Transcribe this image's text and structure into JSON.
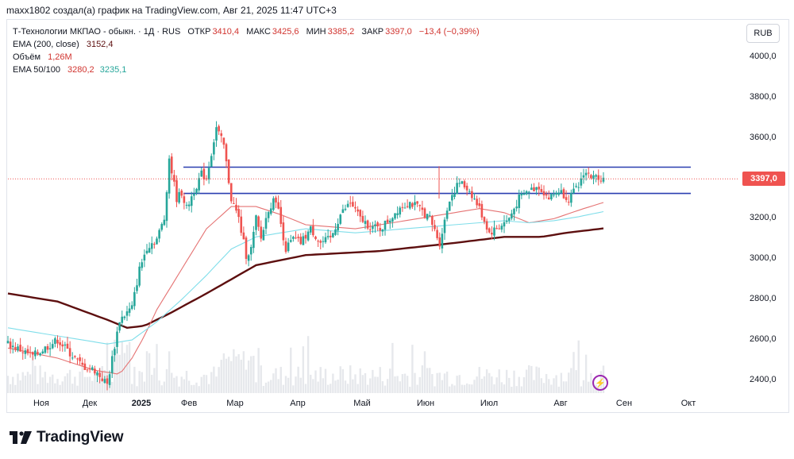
{
  "header": {
    "author_line": "maxx1802 создал(а) график на TradingView.com, Авг 21, 2025 11:47 UTC+3"
  },
  "legend": {
    "symbol": "Т-Технологии МКПАО - обыкн. · 1Д · RUS",
    "open_label": "ОТКР",
    "open": "3410,4",
    "high_label": "МАКС",
    "high": "3425,6",
    "low_label": "МИН",
    "low": "3385,2",
    "close_label": "ЗАКР",
    "close": "3397,0",
    "change": "−13,4 (−0,39%)",
    "ema200_label": "EMA (200, close)",
    "ema200_value": "3152,4",
    "volume_label": "Объём",
    "volume_value": "1,26M",
    "ema50100_label": "EMA 50/100",
    "ema50_value": "3280,2",
    "ema100_value": "3235,1"
  },
  "currency_button": "RUB",
  "last_price_tag": "3397,0",
  "brand": {
    "name": "TradingView"
  },
  "colors": {
    "up": "#26a69a",
    "down": "#ef5350",
    "ema200": "#5d0f0f",
    "ema50": "#e57373",
    "ema100": "#80deea",
    "levels": "#2a3fb0",
    "volume": "#e6e8ec",
    "alert": "#9c27b0"
  },
  "icons": {
    "alert": "alert-icon",
    "logo": "tradingview-logo-icon"
  },
  "chart_data": {
    "type": "line",
    "title": "Т-Технологии МКПАО - обыкн. · 1Д · RUS",
    "x_ticks": [
      "Ноя",
      "Дек",
      "2025",
      "Фев",
      "Мар",
      "Апр",
      "Май",
      "Июн",
      "Июл",
      "Авг",
      "Сен",
      "Окт"
    ],
    "y_ticks": [
      "2400,0",
      "2600,0",
      "2800,0",
      "3000,0",
      "3200,0",
      "3400,0",
      "3600,0",
      "3800,0",
      "4000,0"
    ],
    "ylim": [
      2330,
      4060
    ],
    "x_index_range": [
      0,
      240
    ],
    "grid": false,
    "horizontal_levels": [
      3455,
      3325
    ],
    "series": [
      {
        "name": "Price (close)",
        "x": [
          0,
          10,
          20,
          30,
          35,
          40,
          45,
          50,
          53,
          56,
          60,
          63,
          65,
          68,
          70,
          72,
          75,
          78,
          80,
          84,
          87,
          90,
          93,
          96,
          98,
          100,
          102,
          105,
          108,
          112,
          115,
          118,
          122,
          126,
          130,
          134,
          138,
          142,
          146,
          150,
          154,
          158,
          162,
          166,
          170,
          174,
          178,
          182,
          186,
          190,
          194,
          198,
          202,
          206,
          210,
          214,
          218,
          222,
          226,
          230,
          232,
          234,
          236,
          238,
          240
        ],
        "values": [
          2580,
          2520,
          2600,
          2470,
          2450,
          2380,
          2700,
          2760,
          2950,
          3060,
          3100,
          3200,
          3500,
          3300,
          3330,
          3250,
          3340,
          3420,
          3400,
          3650,
          3560,
          3300,
          3200,
          3020,
          3050,
          3200,
          3100,
          3250,
          3300,
          3050,
          3100,
          3080,
          3150,
          3080,
          3100,
          3220,
          3280,
          3200,
          3160,
          3150,
          3200,
          3260,
          3280,
          3250,
          3200,
          3080,
          3300,
          3380,
          3340,
          3250,
          3130,
          3160,
          3200,
          3300,
          3340,
          3360,
          3300,
          3340,
          3300,
          3360,
          3430,
          3420,
          3400,
          3410,
          3397
        ]
      },
      {
        "name": "EMA (200, close)",
        "x": [
          0,
          20,
          40,
          48,
          55,
          65,
          80,
          100,
          120,
          150,
          180,
          200,
          215,
          225,
          240
        ],
        "values": [
          2830,
          2790,
          2700,
          2660,
          2670,
          2730,
          2830,
          2970,
          3020,
          3040,
          3080,
          3110,
          3110,
          3130,
          3152
        ]
      },
      {
        "name": "EMA 50",
        "x": [
          0,
          20,
          35,
          45,
          50,
          55,
          60,
          70,
          80,
          90,
          100,
          110,
          120,
          140,
          160,
          180,
          190,
          200,
          210,
          220,
          232,
          240
        ],
        "values": [
          2560,
          2510,
          2450,
          2430,
          2510,
          2620,
          2750,
          2950,
          3150,
          3260,
          3260,
          3220,
          3170,
          3150,
          3190,
          3230,
          3250,
          3230,
          3180,
          3200,
          3250,
          3280
        ]
      },
      {
        "name": "EMA 100",
        "x": [
          0,
          20,
          40,
          50,
          60,
          70,
          80,
          90,
          100,
          110,
          120,
          140,
          160,
          180,
          200,
          210,
          220,
          230,
          240
        ],
        "values": [
          2660,
          2620,
          2580,
          2600,
          2690,
          2800,
          2920,
          3050,
          3110,
          3130,
          3150,
          3130,
          3150,
          3170,
          3190,
          3180,
          3190,
          3210,
          3235
        ]
      }
    ]
  }
}
